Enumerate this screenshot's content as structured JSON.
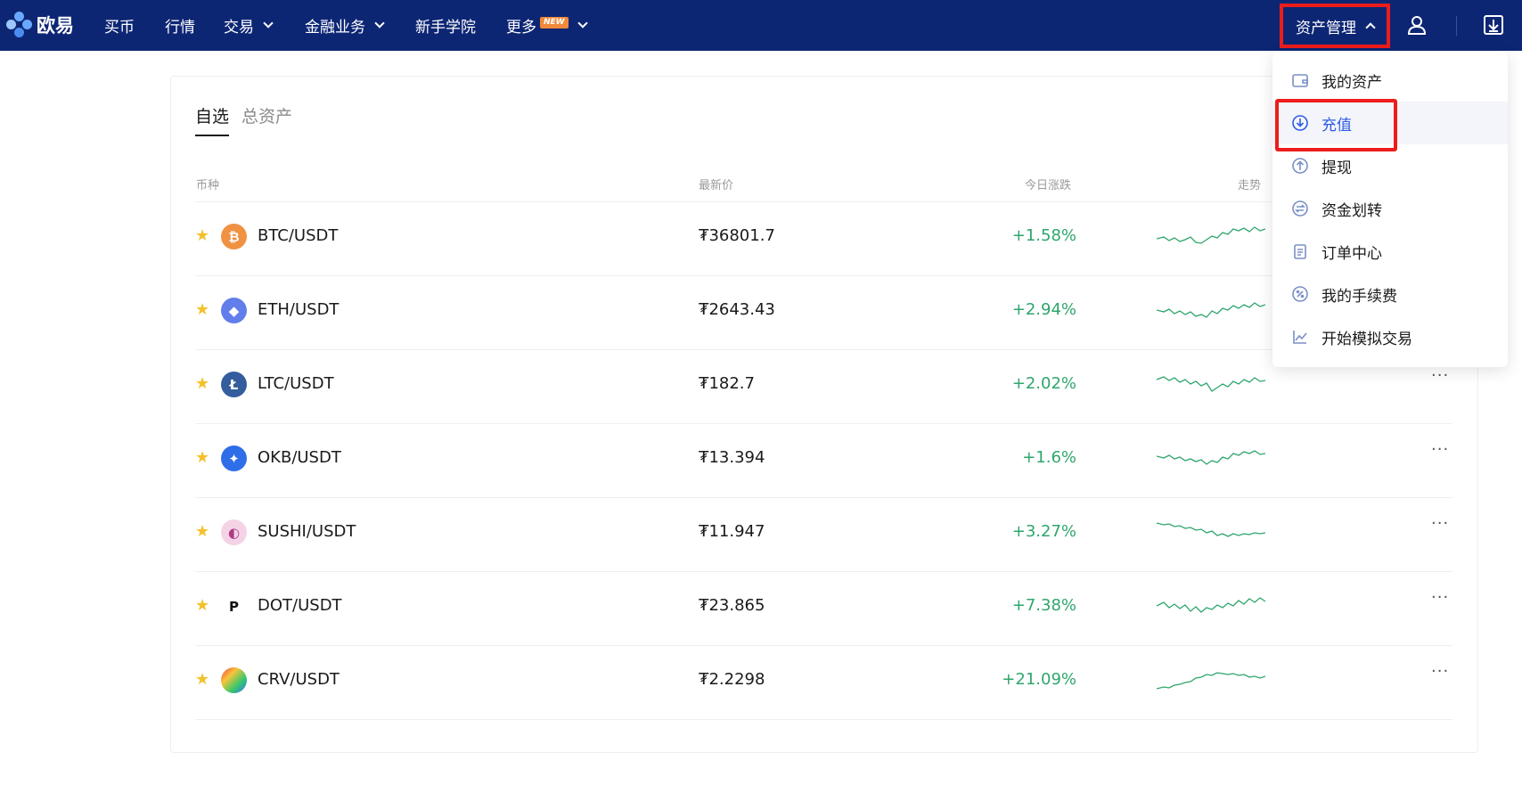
{
  "brand": {
    "name": "欧易"
  },
  "nav": {
    "items": [
      {
        "label": "买币"
      },
      {
        "label": "行情"
      },
      {
        "label": "交易"
      },
      {
        "label": "金融业务"
      },
      {
        "label": "新手学院"
      },
      {
        "label": "更多",
        "badge": "NEW"
      }
    ],
    "asset_mgmt": "资产管理",
    "user_icon": "user-icon",
    "download_icon": "download-icon"
  },
  "tabs": [
    {
      "label": "自选"
    },
    {
      "label": "总资产"
    }
  ],
  "table": {
    "headers": {
      "coin": "币种",
      "price": "最新价",
      "change": "今日涨跌",
      "trend": "走势"
    },
    "rows": [
      {
        "pair": "BTC/USDT",
        "price": "₮36801.7",
        "change": "+1.58%",
        "icon": "btc-icon",
        "color": "#f09242"
      },
      {
        "pair": "ETH/USDT",
        "price": "₮2643.43",
        "change": "+2.94%",
        "icon": "eth-icon",
        "color": "#627eea"
      },
      {
        "pair": "LTC/USDT",
        "price": "₮182.7",
        "change": "+2.02%",
        "icon": "ltc-icon",
        "color": "#345d9d"
      },
      {
        "pair": "OKB/USDT",
        "price": "₮13.394",
        "change": "+1.6%",
        "icon": "okb-icon",
        "color": "#2e6ee8"
      },
      {
        "pair": "SUSHI/USDT",
        "price": "₮11.947",
        "change": "+3.27%",
        "icon": "sushi-icon",
        "color": "#d86ba8"
      },
      {
        "pair": "DOT/USDT",
        "price": "₮23.865",
        "change": "+7.38%",
        "icon": "dot-icon",
        "color": "#ffffff"
      },
      {
        "pair": "CRV/USDT",
        "price": "₮2.2298",
        "change": "+21.09%",
        "icon": "crv-icon",
        "color": "#ffffff"
      }
    ]
  },
  "dropdown": {
    "items": [
      {
        "label": "我的资产",
        "icon": "wallet-icon"
      },
      {
        "label": "充值",
        "icon": "deposit-icon",
        "active": true
      },
      {
        "label": "提现",
        "icon": "withdraw-icon"
      },
      {
        "label": "资金划转",
        "icon": "transfer-icon"
      },
      {
        "label": "订单中心",
        "icon": "clipboard-icon"
      },
      {
        "label": "我的手续费",
        "icon": "fee-icon"
      },
      {
        "label": "开始模拟交易",
        "icon": "chart-line-icon"
      }
    ]
  },
  "colors": {
    "nav_bg": "#0d2674",
    "positive": "#2ea66b",
    "highlight": "#ee1c1c",
    "accent": "#2d5be3"
  }
}
